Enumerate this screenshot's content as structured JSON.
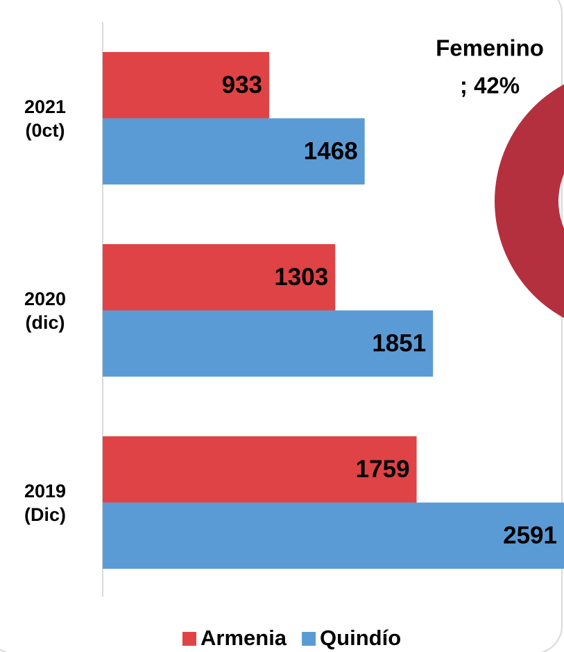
{
  "chart_data": [
    {
      "type": "barh",
      "categories": [
        "2021\n(0ct)",
        "2020\n(dic)",
        "2019\n(Dic)"
      ],
      "series": [
        {
          "name": "Armenia",
          "color": "#e04345",
          "values": [
            933,
            1303,
            1759
          ]
        },
        {
          "name": "Quindío",
          "color": "#5b9bd5",
          "values": [
            1468,
            1851,
            2591
          ]
        }
      ],
      "xlim": [
        0,
        3160
      ]
    },
    {
      "type": "pie",
      "categories": [
        "Femenino"
      ],
      "values": [
        42
      ],
      "value_labels": [
        "; 42%"
      ],
      "color": "#b5303f"
    }
  ]
}
